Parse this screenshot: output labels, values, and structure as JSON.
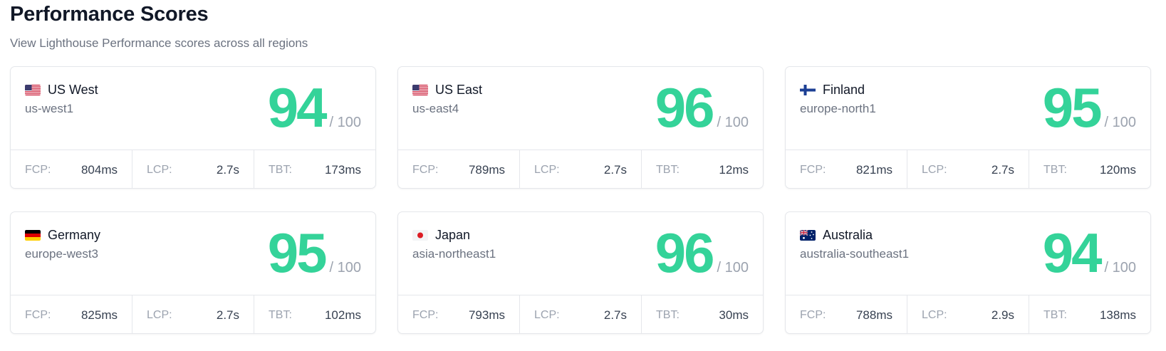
{
  "header": {
    "title": "Performance Scores",
    "subtitle": "View Lighthouse Performance scores across all regions"
  },
  "score_suffix": "/ 100",
  "colors": {
    "score": "#34d399",
    "border": "#e5e7eb",
    "muted": "#9ca3af"
  },
  "regions": [
    {
      "name": "US West",
      "id": "us-west1",
      "flag": "us-flag-icon",
      "score": "94",
      "metrics": [
        {
          "label": "FCP:",
          "value": "804ms"
        },
        {
          "label": "LCP:",
          "value": "2.7s"
        },
        {
          "label": "TBT:",
          "value": "173ms"
        }
      ]
    },
    {
      "name": "US East",
      "id": "us-east4",
      "flag": "us-flag-icon",
      "score": "96",
      "metrics": [
        {
          "label": "FCP:",
          "value": "789ms"
        },
        {
          "label": "LCP:",
          "value": "2.7s"
        },
        {
          "label": "TBT:",
          "value": "12ms"
        }
      ]
    },
    {
      "name": "Finland",
      "id": "europe-north1",
      "flag": "finland-flag-icon",
      "score": "95",
      "metrics": [
        {
          "label": "FCP:",
          "value": "821ms"
        },
        {
          "label": "LCP:",
          "value": "2.7s"
        },
        {
          "label": "TBT:",
          "value": "120ms"
        }
      ]
    },
    {
      "name": "Germany",
      "id": "europe-west3",
      "flag": "germany-flag-icon",
      "score": "95",
      "metrics": [
        {
          "label": "FCP:",
          "value": "825ms"
        },
        {
          "label": "LCP:",
          "value": "2.7s"
        },
        {
          "label": "TBT:",
          "value": "102ms"
        }
      ]
    },
    {
      "name": "Japan",
      "id": "asia-northeast1",
      "flag": "japan-flag-icon",
      "score": "96",
      "metrics": [
        {
          "label": "FCP:",
          "value": "793ms"
        },
        {
          "label": "LCP:",
          "value": "2.7s"
        },
        {
          "label": "TBT:",
          "value": "30ms"
        }
      ]
    },
    {
      "name": "Australia",
      "id": "australia-southeast1",
      "flag": "australia-flag-icon",
      "score": "94",
      "metrics": [
        {
          "label": "FCP:",
          "value": "788ms"
        },
        {
          "label": "LCP:",
          "value": "2.9s"
        },
        {
          "label": "TBT:",
          "value": "138ms"
        }
      ]
    }
  ]
}
